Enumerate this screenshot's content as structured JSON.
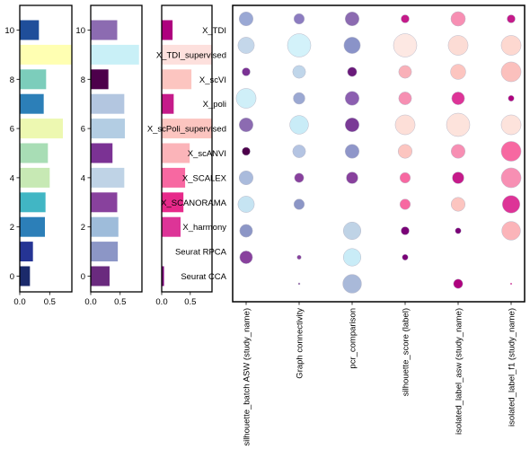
{
  "chart_data": [
    {
      "type": "bar",
      "orientation": "horizontal",
      "categories": [
        0,
        1,
        2,
        3,
        4,
        5,
        6,
        7,
        8,
        9,
        10
      ],
      "values": [
        0.17,
        0.22,
        0.42,
        0.43,
        0.5,
        0.47,
        0.72,
        0.4,
        0.44,
        0.87,
        0.32
      ],
      "colors": [
        "#1b2a6b",
        "#253494",
        "#2c7fb8",
        "#41b6c4",
        "#c7e9b4",
        "#a8ddb5",
        "#edf8b1",
        "#2c7fb8",
        "#7ccdbb",
        "#ffffb2",
        "#1f4e9a"
      ],
      "xlim": [
        0,
        0.87
      ],
      "xticks": [
        "0.0",
        "0.5"
      ],
      "yticks": [
        "0",
        "2",
        "4",
        "6",
        "8",
        "10"
      ]
    },
    {
      "type": "bar",
      "orientation": "horizontal",
      "categories": [
        0,
        1,
        2,
        3,
        4,
        5,
        6,
        7,
        8,
        9,
        10
      ],
      "values": [
        0.32,
        0.46,
        0.47,
        0.45,
        0.57,
        0.37,
        0.58,
        0.57,
        0.3,
        0.82,
        0.45
      ],
      "colors": [
        "#6a2a7e",
        "#8c96c6",
        "#9ebcda",
        "#88419d",
        "#bfd3e6",
        "#7b3294",
        "#b3cde3",
        "#b3c6e0",
        "#4d004b",
        "#c9f0f7",
        "#8c6bb1"
      ],
      "xlim": [
        0,
        0.87
      ],
      "xticks": [
        "0.0",
        "0.5"
      ],
      "yticks": [
        "0",
        "2",
        "4",
        "6",
        "8",
        "10"
      ]
    },
    {
      "type": "bar",
      "orientation": "horizontal",
      "categories": [
        "Seurat CCA",
        "Seurat RPCA",
        "X_harmony",
        "X_SCANORAMA",
        "X_SCALEX",
        "X_scANVI",
        "X_scPoli_supervised",
        "X_poli",
        "X_scVI",
        "X_TDI_supervised",
        "X_TDI"
      ],
      "values": [
        0.04,
        0.0,
        0.33,
        0.38,
        0.41,
        0.49,
        0.88,
        0.21,
        0.52,
        0.88,
        0.19
      ],
      "colors": [
        "#7a0177",
        "#ffffff",
        "#dd3497",
        "#e7298a",
        "#f768a1",
        "#fbb4b9",
        "#fcc5c0",
        "#c51b8a",
        "#fcc5c0",
        "#fde0dd",
        "#ae017e"
      ],
      "xlim": [
        0,
        0.88
      ],
      "xticks": [
        "0.0",
        "0.5"
      ]
    },
    {
      "type": "scatter",
      "rows": [
        "X_TDI",
        "X_TDI_supervised",
        "X_scVI",
        "X_poli",
        "X_scPoli_supervised",
        "X_scANVI",
        "X_SCALEX",
        "X_SCANORAMA",
        "X_harmony",
        "Seurat RPCA",
        "Seurat CCA"
      ],
      "columns": [
        "silhouette_batch ASW (study_name)",
        "Graph connectivity",
        "pcr_comparison",
        "silhouette_score (label)",
        "isolated_label_asw (study_name)",
        "isolated_label_f1 (study_name)"
      ],
      "cells": [
        [
          {
            "v": 0.6,
            "c": "#9aa8d4"
          },
          {
            "v": 0.45,
            "c": "#8c7cc0"
          },
          {
            "v": 0.6,
            "c": "#8c6bb1"
          },
          {
            "v": 0.35,
            "c": "#c51b8a"
          },
          {
            "v": 0.62,
            "c": "#f78fb3"
          },
          {
            "v": 0.35,
            "c": "#c51b8a"
          }
        ],
        [
          {
            "v": 0.7,
            "c": "#c4d7ea"
          },
          {
            "v": 1.0,
            "c": "#d3f2fa"
          },
          {
            "v": 0.7,
            "c": "#8a93c8"
          },
          {
            "v": 1.0,
            "c": "#fde8e3"
          },
          {
            "v": 0.85,
            "c": "#fcdcd5"
          },
          {
            "v": 0.85,
            "c": "#fdd8d0"
          }
        ],
        [
          {
            "v": 0.35,
            "c": "#7b3294"
          },
          {
            "v": 0.55,
            "c": "#c0d6ea"
          },
          {
            "v": 0.4,
            "c": "#6a1a7a"
          },
          {
            "v": 0.55,
            "c": "#f9b0b8"
          },
          {
            "v": 0.65,
            "c": "#fcc5c0"
          },
          {
            "v": 0.85,
            "c": "#fbc0bd"
          }
        ],
        [
          {
            "v": 0.85,
            "c": "#cfeff8"
          },
          {
            "v": 0.5,
            "c": "#9ba8d2"
          },
          {
            "v": 0.6,
            "c": "#8c5fb0"
          },
          {
            "v": 0.55,
            "c": "#f68fb2"
          },
          {
            "v": 0.55,
            "c": "#dd3497"
          },
          {
            "v": 0.25,
            "c": "#ae017e"
          }
        ],
        [
          {
            "v": 0.6,
            "c": "#8c6bb1"
          },
          {
            "v": 0.8,
            "c": "#c9ecf7"
          },
          {
            "v": 0.6,
            "c": "#7a3b96"
          },
          {
            "v": 0.85,
            "c": "#fddfd8"
          },
          {
            "v": 1.0,
            "c": "#fde3dc"
          },
          {
            "v": 0.85,
            "c": "#fde3dc"
          }
        ],
        [
          {
            "v": 0.35,
            "c": "#4d004b"
          },
          {
            "v": 0.55,
            "c": "#b4c4e2"
          },
          {
            "v": 0.6,
            "c": "#8f96c9"
          },
          {
            "v": 0.6,
            "c": "#fcc5c0"
          },
          {
            "v": 0.6,
            "c": "#f78fb3"
          },
          {
            "v": 0.85,
            "c": "#f768a1"
          }
        ],
        [
          {
            "v": 0.6,
            "c": "#aabbdc"
          },
          {
            "v": 0.4,
            "c": "#88419d"
          },
          {
            "v": 0.5,
            "c": "#88419d"
          },
          {
            "v": 0.45,
            "c": "#f768a1"
          },
          {
            "v": 0.5,
            "c": "#c51b8a"
          },
          {
            "v": 0.85,
            "c": "#f78fb3"
          }
        ],
        [
          {
            "v": 0.7,
            "c": "#c6e4f2"
          },
          {
            "v": 0.45,
            "c": "#8c96c6"
          },
          {
            "v": 0.0,
            "c": "#ffffff"
          },
          {
            "v": 0.45,
            "c": "#f768a1"
          },
          {
            "v": 0.6,
            "c": "#fcc5c0"
          },
          {
            "v": 0.75,
            "c": "#dd3497"
          }
        ],
        [
          {
            "v": 0.55,
            "c": "#8c96c6"
          },
          {
            "v": 0.0,
            "c": "#ffffff"
          },
          {
            "v": 0.75,
            "c": "#bfd3e6"
          },
          {
            "v": 0.35,
            "c": "#7a0177"
          },
          {
            "v": 0.25,
            "c": "#7a0177"
          },
          {
            "v": 0.8,
            "c": "#fbb4b9"
          }
        ],
        [
          {
            "v": 0.55,
            "c": "#88419d"
          },
          {
            "v": 0.18,
            "c": "#88419d"
          },
          {
            "v": 0.75,
            "c": "#c9ecf7"
          },
          {
            "v": 0.25,
            "c": "#7a0177"
          },
          {
            "v": 0.0,
            "c": "#ffffff"
          },
          {
            "v": 0.0,
            "c": "#ffffff"
          }
        ],
        [
          {
            "v": 0.0,
            "c": "#ffffff"
          },
          {
            "v": 0.08,
            "c": "#88419d"
          },
          {
            "v": 0.8,
            "c": "#a9b9d9"
          },
          {
            "v": 0.0,
            "c": "#ffffff"
          },
          {
            "v": 0.4,
            "c": "#ae017e"
          },
          {
            "v": 0.03,
            "c": "#c51b8a"
          }
        ]
      ]
    }
  ]
}
